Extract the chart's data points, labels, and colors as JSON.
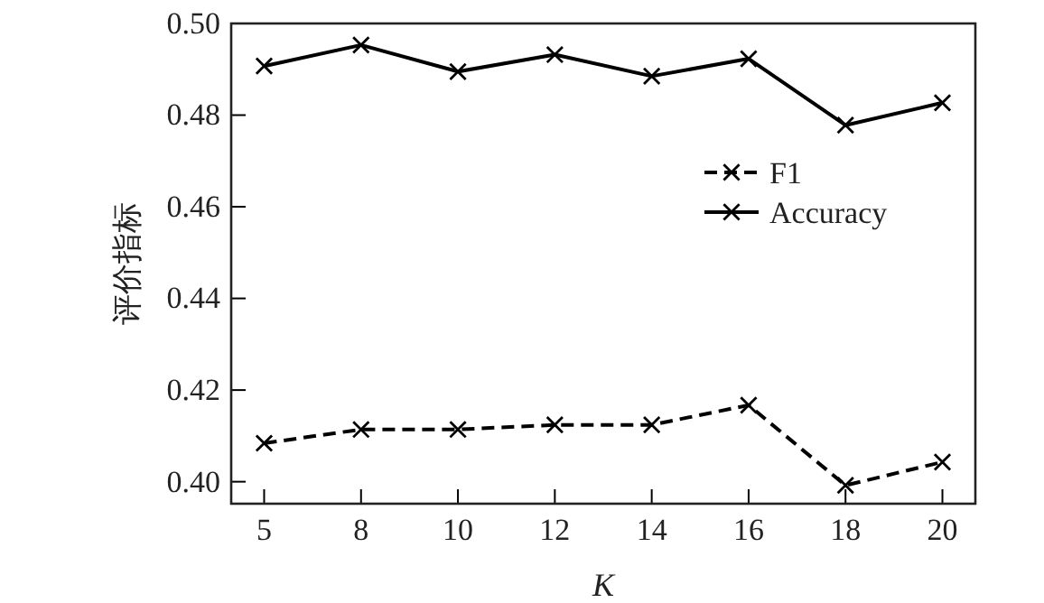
{
  "chart_data": {
    "type": "line",
    "xlabel": "K",
    "ylabel": "评价指标",
    "categories": [
      "5",
      "8",
      "10",
      "12",
      "14",
      "16",
      "18",
      "20"
    ],
    "series": [
      {
        "name": "F1",
        "color": "#000000",
        "line_style": "dashed",
        "values": [
          0.4084,
          0.4114,
          0.4114,
          0.4124,
          0.4124,
          0.4167,
          0.3992,
          0.4043
        ]
      },
      {
        "name": "Accuracy",
        "color": "#000000",
        "line_style": "solid",
        "values": [
          0.4907,
          0.4953,
          0.4895,
          0.4932,
          0.4885,
          0.4923,
          0.4778,
          0.4827
        ]
      }
    ],
    "ylim": [
      0.3952,
      0.5
    ],
    "yticks": [
      {
        "value": 0.4,
        "label": "0.40"
      },
      {
        "value": 0.42,
        "label": "0.42"
      },
      {
        "value": 0.44,
        "label": "0.44"
      },
      {
        "value": 0.46,
        "label": "0.46"
      },
      {
        "value": 0.48,
        "label": "0.48"
      },
      {
        "value": 0.5,
        "label": "0.50"
      }
    ],
    "marker": "cross",
    "grid": false,
    "legend": "right"
  }
}
